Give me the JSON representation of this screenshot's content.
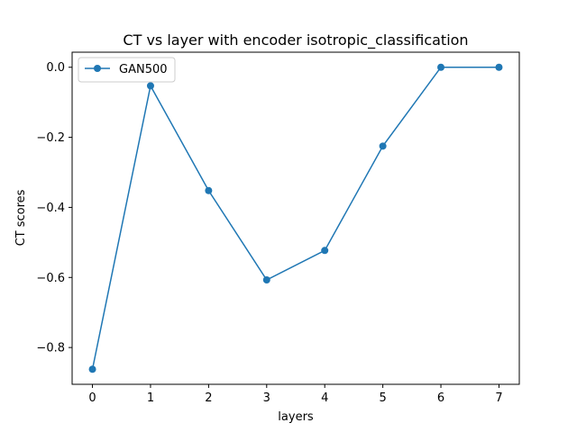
{
  "chart_data": {
    "type": "line",
    "title": "CT vs layer with encoder isotropic_classification",
    "xlabel": "layers",
    "ylabel": "CT scores",
    "x": [
      0,
      1,
      2,
      3,
      4,
      5,
      6,
      7
    ],
    "series": [
      {
        "name": "GAN500",
        "values": [
          -0.862,
          -0.053,
          -0.352,
          -0.607,
          -0.523,
          -0.225,
          0.0,
          0.0
        ],
        "color": "#1f77b4",
        "marker": "circle"
      }
    ],
    "xlim": [
      -0.35,
      7.35
    ],
    "ylim": [
      -0.905,
      0.043
    ],
    "xticks": [
      0,
      1,
      2,
      3,
      4,
      5,
      6,
      7
    ],
    "xtick_labels": [
      "0",
      "1",
      "2",
      "3",
      "4",
      "5",
      "6",
      "7"
    ],
    "yticks": [
      0.0,
      -0.2,
      -0.4,
      -0.6,
      -0.8
    ],
    "ytick_labels": [
      "0.0",
      "−0.2",
      "−0.4",
      "−0.6",
      "−0.8"
    ],
    "grid": false,
    "legend": "top-left"
  }
}
